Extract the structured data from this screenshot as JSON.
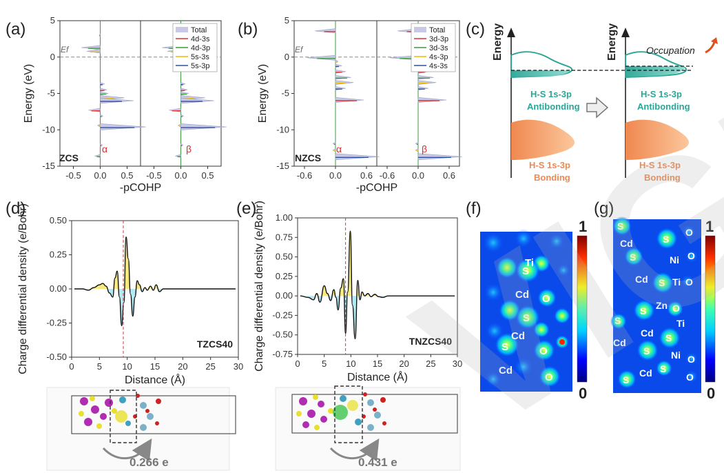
{
  "figure": {
    "watermark": "VIGH"
  },
  "panels": {
    "a": {
      "label": "(a)",
      "compound": "ZCS",
      "spin_left": "α",
      "spin_right": "β",
      "ef_label": "Ef"
    },
    "b": {
      "label": "(b)",
      "compound": "NZCS",
      "spin_left": "α",
      "spin_right": "β",
      "ef_label": "Ef"
    },
    "c": {
      "label": "(c)",
      "energy_axis": "Energy",
      "antibonding_line1": "H-S 1s-3p",
      "antibonding_line2": "Antibonding",
      "bonding_line1": "H-S 1s-3p",
      "bonding_line2": "Bonding",
      "occupation": "Occupation",
      "colors": {
        "antibonding": "#5cbfb0",
        "bonding": "#f3a06c"
      }
    },
    "d": {
      "label": "(d)",
      "tag": "TZCS40",
      "transfer": "0.266 e"
    },
    "e": {
      "label": "(e)",
      "tag": "TNZCS40",
      "transfer": "0.431 e"
    },
    "f": {
      "label": "(f)",
      "scale_max": "1",
      "scale_min": "0",
      "atoms": [
        "Ti",
        "S",
        "Cd",
        "O",
        "S",
        "Cd",
        "S",
        "O",
        "Cd",
        "O"
      ]
    },
    "g": {
      "label": "(g)",
      "scale_max": "1",
      "scale_min": "0",
      "atoms": [
        "S",
        "Cd",
        "S",
        "O",
        "S",
        "Ni",
        "O",
        "Cd",
        "S",
        "Ti",
        "O",
        "S",
        "Zn",
        "O",
        "S",
        "Ti",
        "Cd",
        "S",
        "Cd",
        "S",
        "Ni",
        "O",
        "Cd",
        "S",
        "S",
        "O"
      ]
    }
  },
  "chart_data": [
    {
      "id": "a",
      "type": "line",
      "xlabel": "-pCOHP",
      "ylabel": "Energy (eV)",
      "ylim": [
        -15,
        5
      ],
      "yticks": [
        "5",
        "0",
        "-5",
        "-10",
        "-15"
      ],
      "xlim_left": [
        -0.75,
        0.75
      ],
      "xticks_left": [
        "-0.5",
        "0.0",
        "0.5"
      ],
      "xlim_right": [
        -0.75,
        0.75
      ],
      "xticks_right": [
        "-0.5",
        "0.0",
        "0.5"
      ],
      "fermi_level": 0,
      "legend": [
        {
          "name": "Total",
          "color": "#c9c9e6"
        },
        {
          "name": "4d-3s",
          "color": "#e03030"
        },
        {
          "name": "4d-3p",
          "color": "#3a9a3a"
        },
        {
          "name": "5s-3s",
          "color": "#f0b800"
        },
        {
          "name": "5s-3p",
          "color": "#2c4f9e"
        }
      ],
      "peaks": [
        {
          "energy": 3.0,
          "value": -0.02
        },
        {
          "energy": 1.3,
          "value": -0.35
        },
        {
          "energy": 0.8,
          "value": -0.25
        },
        {
          "energy": -3.7,
          "value": 0.08
        },
        {
          "energy": -4.5,
          "value": 0.12
        },
        {
          "energy": -5.0,
          "value": 0.15
        },
        {
          "energy": -5.6,
          "value": 0.45
        },
        {
          "energy": -6.0,
          "value": 0.62
        },
        {
          "energy": -7.3,
          "value": -0.22
        },
        {
          "energy": -8.1,
          "value": 0.05
        },
        {
          "energy": -9.4,
          "value": -0.05
        },
        {
          "energy": -9.6,
          "value": 0.85
        },
        {
          "energy": -12.1,
          "value": 0.04
        },
        {
          "energy": -13.6,
          "value": -0.1
        }
      ]
    },
    {
      "id": "b",
      "type": "line",
      "xlabel": "-pCOHP",
      "ylabel": "Energy (eV)",
      "ylim": [
        -15,
        5
      ],
      "yticks": [
        "5",
        "0",
        "-5",
        "-10",
        "-15"
      ],
      "xlim_left": [
        -0.8,
        0.8
      ],
      "xticks_left": [
        "-0.6",
        "0.0",
        "0.6"
      ],
      "xlim_right": [
        -0.8,
        0.8
      ],
      "xticks_right": [
        "-0.6",
        "0.0",
        "0.6"
      ],
      "fermi_level": 0,
      "legend": [
        {
          "name": "Total",
          "color": "#c9c9e6"
        },
        {
          "name": "3d-3p",
          "color": "#e03030"
        },
        {
          "name": "3d-3s",
          "color": "#3a9a3a"
        },
        {
          "name": "4s-3p",
          "color": "#f0b800"
        },
        {
          "name": "4s-3s",
          "color": "#2c4f9e"
        }
      ],
      "peaks": [
        {
          "energy": 3.6,
          "value": -0.4
        },
        {
          "energy": -0.1,
          "value": -0.55
        },
        {
          "energy": -0.6,
          "value": 0.05
        },
        {
          "energy": -1.2,
          "value": 0.12
        },
        {
          "energy": -2.0,
          "value": 0.2
        },
        {
          "energy": -2.8,
          "value": 0.3
        },
        {
          "energy": -3.5,
          "value": 0.35
        },
        {
          "energy": -4.3,
          "value": 0.2
        },
        {
          "energy": -5.9,
          "value": 0.55
        },
        {
          "energy": -11.9,
          "value": -0.05
        },
        {
          "energy": -12.8,
          "value": -0.05
        },
        {
          "energy": -13.7,
          "value": 0.85
        }
      ]
    },
    {
      "id": "d",
      "type": "line",
      "xlabel": "Distance (Å)",
      "ylabel": "Charge differential density (e/Bohr)",
      "xlim": [
        0,
        30
      ],
      "ylim": [
        -0.5,
        0.5
      ],
      "xticks": [
        "0",
        "5",
        "10",
        "15",
        "20",
        "25",
        "30"
      ],
      "yticks": [
        "0.50",
        "0.25",
        "0.00",
        "-0.25",
        "-0.50"
      ],
      "interface_x": 9.3,
      "x": [
        0.5,
        2,
        3,
        4,
        5,
        5.6,
        6.2,
        6.8,
        7.4,
        7.8,
        8.2,
        8.6,
        9.0,
        9.4,
        9.8,
        10.2,
        10.6,
        11.0,
        11.4,
        11.8,
        12.2,
        12.7,
        13.2,
        13.6,
        14.2,
        14.7,
        15.2,
        15.8,
        16.5,
        17.5,
        20,
        25,
        29.5
      ],
      "y": [
        0.0,
        0.0,
        -0.01,
        0.01,
        0.03,
        0.04,
        0.02,
        -0.03,
        -0.06,
        0.08,
        0.13,
        -0.06,
        -0.27,
        -0.1,
        0.38,
        0.22,
        -0.04,
        -0.2,
        -0.06,
        0.06,
        0.03,
        -0.02,
        0.01,
        -0.01,
        0.02,
        -0.01,
        0.03,
        -0.02,
        0.0,
        0.0,
        0.0,
        0.0,
        0.0
      ]
    },
    {
      "id": "e",
      "type": "line",
      "xlabel": "Distance (Å)",
      "ylabel": "Charge differential density (e/Bohr)",
      "xlim": [
        0,
        30
      ],
      "ylim": [
        -0.75,
        1.0
      ],
      "xticks": [
        "0",
        "5",
        "10",
        "15",
        "20",
        "25",
        "30"
      ],
      "yticks": [
        "1.00",
        "0.75",
        "0.50",
        "0.25",
        "0.00",
        "-0.25",
        "-0.50",
        "-0.75"
      ],
      "interface_x": 9.0,
      "x": [
        0.5,
        2,
        3,
        3.6,
        4.2,
        5.0,
        5.6,
        6.2,
        6.8,
        7.2,
        7.6,
        8.1,
        8.6,
        9.0,
        9.4,
        9.9,
        10.3,
        10.8,
        11.3,
        11.7,
        12.1,
        12.6,
        13.2,
        13.8,
        14.5,
        15.2,
        16.0,
        17.0,
        18,
        20,
        25,
        29.5
      ],
      "y": [
        0.0,
        -0.02,
        -0.05,
        0.03,
        -0.08,
        0.13,
        0.03,
        -0.06,
        0.08,
        -0.02,
        -0.18,
        0.1,
        0.22,
        -0.48,
        0.05,
        0.83,
        -0.12,
        -0.55,
        0.2,
        -0.05,
        0.05,
        0.0,
        0.03,
        -0.01,
        0.02,
        -0.01,
        -0.02,
        0.0,
        0.0,
        0.0,
        0.0,
        0.0
      ]
    }
  ]
}
